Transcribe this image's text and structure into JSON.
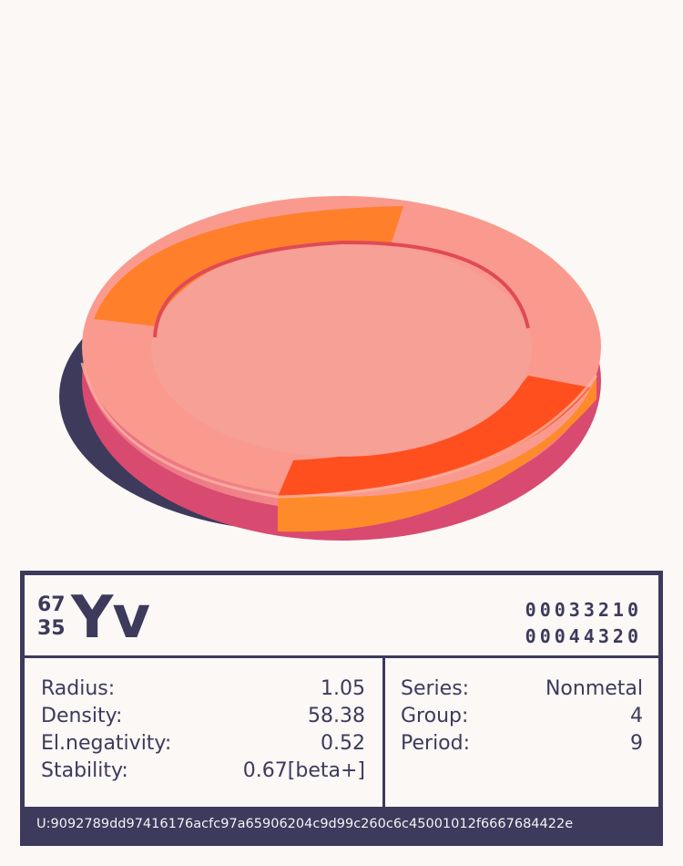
{
  "element": {
    "mass_number": "67",
    "atomic_number": "35",
    "symbol": "Yv",
    "code_top": "00033210",
    "code_bottom": "00044320"
  },
  "properties_left": [
    {
      "label": "Radius:",
      "value": "1.05"
    },
    {
      "label": "Density:",
      "value": "58.38"
    },
    {
      "label": "El.negativity:",
      "value": "0.52"
    },
    {
      "label": "Stability:",
      "value": "0.67[beta+]"
    }
  ],
  "properties_right": [
    {
      "label": "Series:",
      "value": "Nonmetal"
    },
    {
      "label": "Group:",
      "value": "4"
    },
    {
      "label": "Period:",
      "value": "9"
    }
  ],
  "footer_id": "U:9092789dd97416176acfc97a65906204c9d99c260c6c45001012f6667684422e",
  "colors": {
    "ink": "#3d3a5c",
    "background": "#fbf8f6",
    "disc_salmon": "#fa9a8e",
    "disc_orange": "#ff7f2a",
    "disc_red_orange": "#ff4f1e",
    "disc_edge": "#d84a70"
  }
}
